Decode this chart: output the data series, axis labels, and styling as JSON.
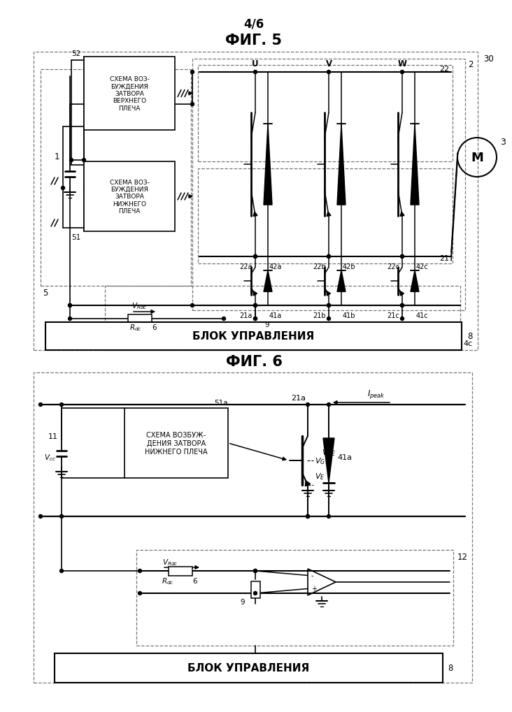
{
  "page_label": "4/6",
  "fig5_title": "ФИГ. 5",
  "fig6_title": "ФИГ. 6",
  "ctrl_text": "БЛОК УПРАВЛЕНИЯ",
  "upper_drv": "СХЕМА ВОЗ-\nБУЖДЕНИЯ\nЗАТВОРА\nВЕРХНЕГО\nПЛЕЧА",
  "lower_drv": "СХЕМА ВОЗ-\nБУЖДЕНИЯ\nЗАТВОРА\nНИЖНЕГО\nПЛЕЧА",
  "lower_drv2": "СХЕМА ВОЗБУЖ-\nДЕНИЯ ЗАТВОРА\nНИЖНЕГО ПЛЕЧА",
  "bg": "#ffffff"
}
